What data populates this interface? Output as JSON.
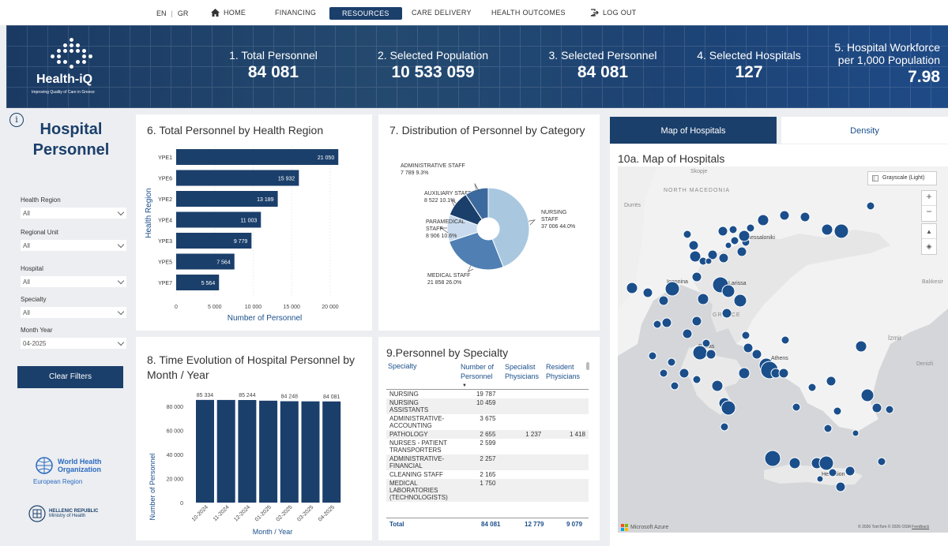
{
  "nav": {
    "lang_en": "EN",
    "lang_gr": "GR",
    "home": "HOME",
    "financing": "FINANCING",
    "resources": "RESOURCES",
    "care_delivery": "CARE DELIVERY",
    "health_outcomes": "HEALTH OUTCOMES",
    "log_out": "LOG OUT"
  },
  "brand": {
    "name": "Health-iQ",
    "tagline": "Improving Quality of Care in Greece"
  },
  "kpis": [
    {
      "label": "1. Total Personnel",
      "value": "84 081"
    },
    {
      "label": "2. Selected Population",
      "value": "10 533 059"
    },
    {
      "label": "3. Selected Personnel",
      "value": "84 081"
    },
    {
      "label": "4. Selected Hospitals",
      "value": "127"
    },
    {
      "label_line1": "5. Hospital Workforce",
      "label_line2": "per 1,000 Population",
      "value": "7.98"
    }
  ],
  "sidebar": {
    "title_line1": "Hospital",
    "title_line2": "Personnel",
    "filters": [
      {
        "label": "Health Region",
        "value": "All"
      },
      {
        "label": "Regional Unit",
        "value": "All"
      },
      {
        "label": "Hospital",
        "value": "All"
      },
      {
        "label": "Specialty",
        "value": "All"
      },
      {
        "label": "Month Year",
        "value": "04-2025"
      }
    ],
    "clear_label": "Clear Filters",
    "who_line1": "World Health",
    "who_line2": "Organization",
    "who_region": "European Region",
    "gr_line1": "HELLENIC REPUBLIC",
    "gr_line2": "Ministry of Health"
  },
  "chart_data": [
    {
      "type": "bar",
      "orientation": "horizontal",
      "title": "6. Total Personnel by Health Region",
      "xlabel": "Number of Personnel",
      "ylabel": "Health Region",
      "categories": [
        "YPE1",
        "YPE6",
        "YPE2",
        "YPE4",
        "YPE3",
        "YPE5",
        "YPE7"
      ],
      "values": [
        21050,
        15932,
        13189,
        11003,
        9779,
        7564,
        5564
      ],
      "data_labels": [
        "21 050",
        "15 932",
        "13 189",
        "11 003",
        "9 779",
        "7 564",
        "5 564"
      ],
      "xticks": [
        "0",
        "5 000",
        "10 000",
        "15 000",
        "20 000"
      ],
      "xlim": [
        0,
        22500
      ],
      "color": "#1b3f6b"
    },
    {
      "type": "pie",
      "title": "7. Distribution of Personnel by Category",
      "slices": [
        {
          "name_line1": "NURSING",
          "name_line2": "STAFF",
          "value": 37006,
          "label": "37 006 44.0%",
          "color": "#a9c8e0"
        },
        {
          "name_line1": "MEDICAL STAFF",
          "name_line2": "",
          "value": 21858,
          "label": "21 858 26.0%",
          "color": "#4f7fb3"
        },
        {
          "name_line1": "PARAMEDICAL",
          "name_line2": "STAFF",
          "value": 8906,
          "label": "8 906 10.6%",
          "color": "#c9daee"
        },
        {
          "name_line1": "AUXILIARY STAFF",
          "name_line2": "",
          "value": 8522,
          "label": "8 522 10.1%",
          "color": "#1b3f6b"
        },
        {
          "name_line1": "ADMINISTRATIVE STAFF",
          "name_line2": "",
          "value": 7789,
          "label": "7 789 9.3%",
          "color": "#3d6a9e"
        }
      ]
    },
    {
      "type": "bar",
      "orientation": "vertical",
      "title_line1": "8. Time Evolution of Hospital Personnel by",
      "title_line2": "Month / Year",
      "xlabel": "Month / Year",
      "ylabel": "Number of Personnel",
      "categories": [
        "10-2024",
        "11-2024",
        "12-2024",
        "01-2025",
        "02-2025",
        "03-2025",
        "04-2025"
      ],
      "values": [
        85334,
        85300,
        85244,
        84700,
        84248,
        84150,
        84081
      ],
      "data_labels": [
        "85 334",
        "",
        "85 244",
        "",
        "84 248",
        "",
        "84 081"
      ],
      "yticks": [
        "0",
        "20 000",
        "40 000",
        "60 000",
        "80 000"
      ],
      "ylim": [
        0,
        90000
      ],
      "color": "#1b3f6b"
    }
  ],
  "specialty_table": {
    "title": "9.Personnel by Specialty",
    "headers": {
      "specialty": "Specialty",
      "personnel_line1": "Number of",
      "personnel_line2": "Personnel",
      "specialist_line1": "Specialist",
      "specialist_line2": "Physicians",
      "resident_line1": "Resident",
      "resident_line2": "Physicians"
    },
    "rows": [
      {
        "name": "NURSING",
        "personnel": "19 787",
        "specialist": "",
        "resident": ""
      },
      {
        "name": "NURSING ASSISTANTS",
        "personnel": "10 459",
        "specialist": "",
        "resident": ""
      },
      {
        "name": "ADMINISTRATIVE-\nACCOUNTING",
        "personnel": "3 675",
        "specialist": "",
        "resident": ""
      },
      {
        "name": "PATHOLOGY",
        "personnel": "2 655",
        "specialist": "1 237",
        "resident": "1 418"
      },
      {
        "name": "NURSES - PATIENT\nTRANSPORTERS",
        "personnel": "2 599",
        "specialist": "",
        "resident": ""
      },
      {
        "name": "ADMINISTRATIVE-\nFINANCIAL",
        "personnel": "2 257",
        "specialist": "",
        "resident": ""
      },
      {
        "name": "CLEANING STAFF",
        "personnel": "2 165",
        "specialist": "",
        "resident": ""
      },
      {
        "name": "MEDICAL\nLABORATORIES\n(TECHNOLOGISTS)",
        "personnel": "1 750",
        "specialist": "",
        "resident": ""
      }
    ],
    "total": {
      "name": "Total",
      "personnel": "84 081",
      "specialist": "12 779",
      "resident": "9 079"
    }
  },
  "map": {
    "tab_map": "Map of Hospitals",
    "tab_density": "Density",
    "title": "10a. Map of Hospitals",
    "style_label": "Grayscale (Light)",
    "zoom_in": "+",
    "zoom_out": "−",
    "labels": {
      "skopje": "Skopje",
      "north_macedonia": "NORTH MACEDONIA",
      "durres": "Durrës",
      "thessaloniki": "Thessaloniki",
      "ioannina": "Ioannina",
      "larissa": "Larissa",
      "greece": "GREECE",
      "patras": "Patras",
      "athens": "Athens",
      "izmir": "İzmir",
      "denizli": "Denizli",
      "balikesir": "Balıkesir",
      "heraklion": "Heraklion"
    },
    "provider": "Microsoft Azure",
    "attribution": "© 2026 TomTom  © 2026 OSM",
    "feedback": "Feedback"
  }
}
